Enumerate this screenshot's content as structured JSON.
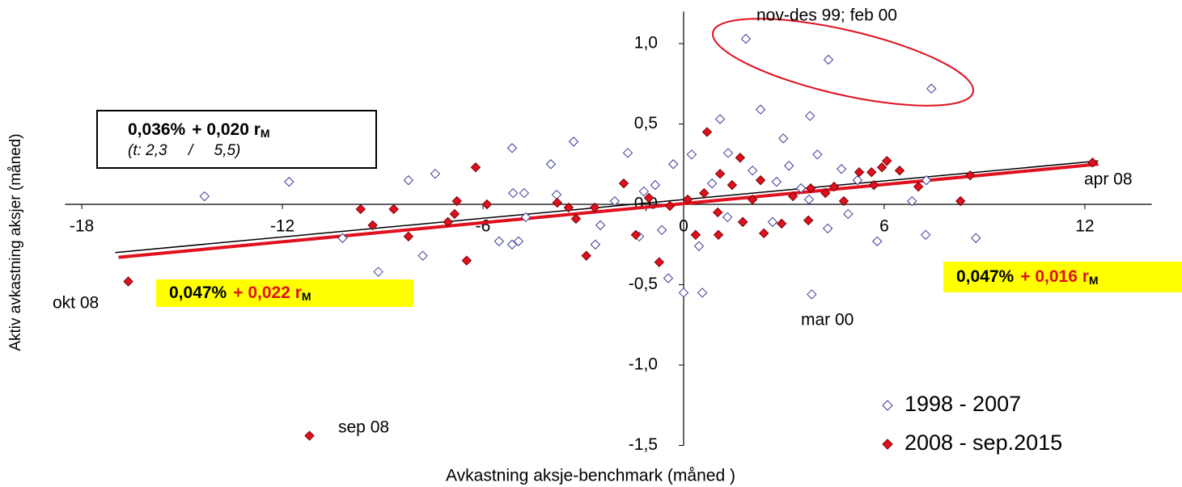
{
  "chart_data": {
    "type": "scatter",
    "x_label": "Avkastning aksje-benchmark (måned )",
    "y_label": "Aktiv avkastning aksjer (måned)",
    "xlim": [
      -18.5,
      14
    ],
    "ylim": [
      -1.5,
      1.2
    ],
    "xticks": [
      -18,
      -12,
      -6,
      0,
      6,
      12
    ],
    "yticks": [
      {
        "value": -1.5,
        "label": "-1,5"
      },
      {
        "value": -1,
        "label": "-1,0"
      },
      {
        "value": -0.5,
        "label": "-0,5"
      },
      {
        "value": 0,
        "label": "0,0"
      },
      {
        "value": 0.5,
        "label": "0,5"
      },
      {
        "value": 1,
        "label": "1,0"
      }
    ],
    "series": [
      {
        "name": "1998 - 2007",
        "color": "#3a3a9a",
        "marker": "open-diamond",
        "x": [
          1.86,
          4.33,
          7.41,
          2.3,
          3.78,
          1.09,
          -14.33,
          -11.8,
          -10.2,
          -9.13,
          -8.23,
          -7.43,
          -7.8,
          -5.13,
          -5.1,
          -4.77,
          -4.72,
          -5.52,
          -5.13,
          -4.94,
          -3.97,
          -3.29,
          -3.8,
          -2.64,
          -2.49,
          -1.67,
          -1.33,
          -0.65,
          -0.46,
          0,
          0.56,
          0.46,
          0.24,
          -0.31,
          1.31,
          1.77,
          2.66,
          2.98,
          3.83,
          4.0,
          4.31,
          4.92,
          5.79,
          6.83,
          7.24,
          8.74,
          7.26,
          3.51,
          2.78,
          0.85,
          -0.85,
          -2.06,
          -1.19,
          5.2,
          4.72,
          3.15,
          2.06,
          3.75,
          1.33
        ],
        "y": [
          1.03,
          0.9,
          0.72,
          0.59,
          0.55,
          0.53,
          0.05,
          0.14,
          -0.21,
          -0.42,
          0.15,
          0.19,
          -0.32,
          0.35,
          0.07,
          0.07,
          -0.08,
          -0.23,
          -0.25,
          -0.23,
          0.25,
          0.39,
          0.06,
          -0.25,
          -0.13,
          0.32,
          -0.2,
          -0.16,
          -0.46,
          -0.55,
          -0.55,
          -0.26,
          0.31,
          0.25,
          -0.08,
          -0.11,
          -0.11,
          0.41,
          -0.56,
          0.31,
          -0.15,
          -0.06,
          -0.23,
          0.02,
          -0.19,
          -0.21,
          0.15,
          0.1,
          0.14,
          0.13,
          0.12,
          0.02,
          0.08,
          0.15,
          0.22,
          0.24,
          0.21,
          0.03,
          0.32
        ]
      },
      {
        "name": "2008 - sep.2015",
        "color": "#e0101e",
        "marker": "filled-diamond",
        "x": [
          -16.61,
          -11.19,
          12.23,
          -9.66,
          -9.3,
          -8.67,
          -8.23,
          -6.22,
          -6.78,
          -6.85,
          -7.05,
          -6.49,
          -5.88,
          -3.78,
          -3.44,
          -3.22,
          -2.91,
          -2.66,
          -1.79,
          -1.43,
          -0.73,
          -1.04,
          -0.41,
          0.7,
          0.36,
          1.04,
          1.02,
          1.09,
          1.69,
          1.77,
          2.3,
          2.4,
          2.93,
          3.73,
          3.8,
          4.5,
          4.79,
          5.25,
          5.62,
          6.08,
          5.93,
          6.46,
          7.02,
          8.28,
          8.57,
          5.69,
          4.24,
          3.27,
          1.45,
          2.06,
          0.61,
          0.12
        ],
        "y": [
          -0.48,
          -1.44,
          0.26,
          -0.03,
          -0.13,
          -0.03,
          -0.2,
          0.23,
          0.02,
          -0.06,
          -0.11,
          -0.35,
          0,
          0.01,
          -0.02,
          -0.09,
          -0.32,
          -0.02,
          0.13,
          -0.19,
          -0.36,
          0.04,
          -0.01,
          0.45,
          -0.19,
          -0.19,
          -0.05,
          0.19,
          0.29,
          -0.11,
          0.15,
          -0.18,
          -0.12,
          -0.1,
          0.1,
          0.11,
          0.02,
          0.2,
          0.2,
          0.27,
          0.23,
          0.21,
          0.11,
          0.02,
          0.18,
          0.12,
          0.07,
          0.05,
          0.12,
          0.03,
          0.07,
          0.03
        ]
      }
    ],
    "trend_lines": [
      {
        "color": "#000000",
        "x": [
          -17,
          12.4
        ],
        "y": [
          -0.3,
          0.27
        ]
      },
      {
        "color": "#e0101e",
        "x": [
          -16.9,
          12.4
        ],
        "y": [
          -0.33,
          0.25
        ]
      }
    ],
    "annotations": [
      "nov-des 99; feb 00",
      "apr 08",
      "okt 08",
      "mar 00",
      "sep 08"
    ],
    "equation_boxes": [
      {
        "intercept": "0,036%",
        "slope": "+ 0,020 r",
        "subscript": "M",
        "t_stats": "(t: 2,3     /     5,5)"
      },
      {
        "intercept": "0,047%",
        "slope": "+ 0,022 r",
        "subscript": "M"
      },
      {
        "intercept": "0,047%",
        "slope": "+ 0,016 r",
        "subscript": "M"
      }
    ]
  }
}
